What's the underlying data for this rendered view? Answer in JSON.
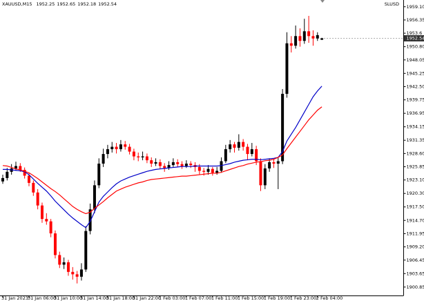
{
  "chart_data": {
    "type": "candlestick",
    "title": "XAUUSD,M15",
    "corner_label": "SLUSD",
    "categories": [
      "31 Jan 2023",
      null,
      null,
      null,
      null,
      null,
      "31 Jan 06:00",
      null,
      null,
      null,
      null,
      null,
      "31 Jan 10:00",
      null,
      null,
      null,
      null,
      null,
      "31 Jan 14:00",
      null,
      null,
      null,
      null,
      null,
      "31 Jan 18:00",
      null,
      null,
      null,
      null,
      null,
      "31 Jan 22:00",
      null,
      null,
      null,
      null,
      null,
      "1 Feb 03:00",
      null,
      null,
      null,
      null,
      null,
      "1 Feb 07:00",
      null,
      null,
      null,
      null,
      null,
      "1 Feb 11:00",
      null,
      null,
      null,
      null,
      null,
      "1 Feb 15:00",
      null,
      null,
      null,
      null,
      null,
      "1 Feb 19:00",
      null,
      null,
      null,
      null,
      null,
      "1 Feb 23:00",
      null,
      null,
      null,
      null,
      null,
      "2 Feb 04:00",
      null
    ],
    "candles": [
      [
        1922.8,
        1924.2,
        1922.3,
        1923.5
      ],
      [
        1923.5,
        1925.6,
        1923.0,
        1924.8
      ],
      [
        1924.8,
        1926.4,
        1924.2,
        1925.5
      ],
      [
        1925.5,
        1926.9,
        1925.0,
        1926.0
      ],
      [
        1926.0,
        1926.6,
        1924.8,
        1925.2
      ],
      [
        1925.2,
        1925.7,
        1923.4,
        1924.0
      ],
      [
        1924.0,
        1924.5,
        1921.8,
        1922.5
      ],
      [
        1922.5,
        1923.0,
        1919.8,
        1920.5
      ],
      [
        1920.5,
        1921.2,
        1917.0,
        1917.8
      ],
      [
        1917.8,
        1918.4,
        1914.2,
        1915.0
      ],
      [
        1915.0,
        1916.2,
        1913.8,
        1914.5
      ],
      [
        1914.5,
        1915.0,
        1911.2,
        1912.0
      ],
      [
        1912.0,
        1912.6,
        1906.8,
        1907.5
      ],
      [
        1907.5,
        1908.2,
        1904.8,
        1905.5
      ],
      [
        1905.5,
        1907.0,
        1904.6,
        1906.0
      ],
      [
        1906.0,
        1906.5,
        1903.2,
        1904.0
      ],
      [
        1904.0,
        1905.0,
        1902.4,
        1903.5
      ],
      [
        1903.5,
        1904.2,
        1901.6,
        1903.0
      ],
      [
        1903.0,
        1905.8,
        1902.2,
        1904.5
      ],
      [
        1904.5,
        1913.5,
        1904.0,
        1912.5
      ],
      [
        1912.5,
        1918.2,
        1911.8,
        1917.0
      ],
      [
        1917.0,
        1923.0,
        1916.2,
        1922.0
      ],
      [
        1922.0,
        1927.6,
        1921.4,
        1926.5
      ],
      [
        1926.5,
        1929.6,
        1925.8,
        1928.5
      ],
      [
        1928.5,
        1930.4,
        1927.6,
        1929.5
      ],
      [
        1929.5,
        1931.0,
        1928.8,
        1930.0
      ],
      [
        1930.0,
        1930.8,
        1928.6,
        1929.5
      ],
      [
        1929.5,
        1931.4,
        1929.0,
        1930.5
      ],
      [
        1930.5,
        1931.2,
        1929.4,
        1930.0
      ],
      [
        1930.0,
        1930.6,
        1928.4,
        1929.0
      ],
      [
        1929.0,
        1929.6,
        1927.2,
        1928.0
      ],
      [
        1928.0,
        1928.8,
        1927.0,
        1927.8
      ],
      [
        1927.8,
        1929.0,
        1927.2,
        1928.0
      ],
      [
        1928.0,
        1928.6,
        1926.6,
        1927.2
      ],
      [
        1927.2,
        1927.8,
        1925.8,
        1926.5
      ],
      [
        1926.5,
        1927.6,
        1926.0,
        1926.8
      ],
      [
        1926.8,
        1927.4,
        1925.4,
        1926.0
      ],
      [
        1926.0,
        1926.6,
        1924.8,
        1925.6
      ],
      [
        1925.6,
        1927.0,
        1925.2,
        1926.2
      ],
      [
        1926.2,
        1927.6,
        1925.8,
        1926.8
      ],
      [
        1926.8,
        1927.4,
        1925.8,
        1926.4
      ],
      [
        1926.4,
        1927.0,
        1925.4,
        1926.0
      ],
      [
        1926.0,
        1927.2,
        1925.6,
        1926.5
      ],
      [
        1926.5,
        1927.0,
        1925.6,
        1926.2
      ],
      [
        1926.2,
        1926.8,
        1924.8,
        1925.8
      ],
      [
        1925.8,
        1926.4,
        1924.2,
        1925.0
      ],
      [
        1925.0,
        1925.6,
        1924.0,
        1924.8
      ],
      [
        1924.8,
        1926.2,
        1924.2,
        1925.4
      ],
      [
        1925.4,
        1925.8,
        1924.0,
        1924.6
      ],
      [
        1924.6,
        1925.8,
        1924.2,
        1925.0
      ],
      [
        1925.0,
        1927.8,
        1924.6,
        1927.0
      ],
      [
        1927.0,
        1930.4,
        1926.6,
        1929.5
      ],
      [
        1929.5,
        1931.4,
        1928.8,
        1930.5
      ],
      [
        1930.5,
        1931.0,
        1928.8,
        1929.8
      ],
      [
        1929.8,
        1932.6,
        1929.2,
        1931.0
      ],
      [
        1931.0,
        1931.6,
        1929.2,
        1930.0
      ],
      [
        1930.0,
        1930.6,
        1927.2,
        1928.5
      ],
      [
        1928.5,
        1930.8,
        1928.0,
        1929.5
      ],
      [
        1929.5,
        1930.2,
        1926.2,
        1927.0
      ],
      [
        1927.0,
        1927.6,
        1920.8,
        1922.0
      ],
      [
        1922.0,
        1926.4,
        1921.2,
        1925.5
      ],
      [
        1925.5,
        1927.6,
        1924.8,
        1926.8
      ],
      [
        1926.8,
        1927.4,
        1925.6,
        1926.5
      ],
      [
        1926.5,
        1927.8,
        1921.2,
        1927.0
      ],
      [
        1927.0,
        1942.0,
        1926.4,
        1941.0
      ],
      [
        1941.0,
        1953.8,
        1940.2,
        1951.5
      ],
      [
        1951.5,
        1953.0,
        1949.6,
        1951.0
      ],
      [
        1951.0,
        1955.2,
        1950.4,
        1953.0
      ],
      [
        1953.0,
        1954.6,
        1950.8,
        1952.0
      ],
      [
        1952.0,
        1956.6,
        1951.4,
        1954.0
      ],
      [
        1954.0,
        1957.2,
        1951.6,
        1953.0
      ],
      [
        1953.0,
        1954.2,
        1951.0,
        1952.5
      ],
      [
        1952.5,
        1953.8,
        1952.0,
        1953.2
      ],
      [
        1952.25,
        1952.65,
        1952.18,
        1952.54
      ]
    ],
    "up_color": "#000000",
    "down_color": "#ff0000",
    "lines": [
      {
        "color": "#0000c8",
        "values": [
          1925.3,
          1925.3,
          1925.2,
          1925.1,
          1925.0,
          1924.8,
          1924.2,
          1923.3,
          1922.4,
          1921.6,
          1920.8,
          1919.8,
          1918.7,
          1917.8,
          1916.9,
          1916.0,
          1915.2,
          1914.5,
          1913.8,
          1913.2,
          1914.5,
          1916.5,
          1918.5,
          1919.7,
          1920.6,
          1921.5,
          1922.3,
          1922.9,
          1923.3,
          1923.7,
          1924.0,
          1924.3,
          1924.6,
          1924.9,
          1925.1,
          1925.3,
          1925.4,
          1925.5,
          1925.6,
          1925.7,
          1925.8,
          1925.9,
          1925.9,
          1925.9,
          1926.0,
          1926.0,
          1926.0,
          1926.0,
          1926.0,
          1926.0,
          1926.1,
          1926.3,
          1926.5,
          1926.8,
          1927.0,
          1927.2,
          1927.3,
          1927.4,
          1927.4,
          1927.3,
          1927.4,
          1927.5,
          1927.6,
          1927.8,
          1929.0,
          1931.2,
          1932.6,
          1934.0,
          1935.6,
          1937.2,
          1938.8,
          1940.4,
          1941.6,
          1942.6
        ]
      },
      {
        "color": "#ff0000",
        "values": [
          1926.1,
          1926.0,
          1925.7,
          1925.4,
          1925.2,
          1924.9,
          1924.6,
          1924.0,
          1923.4,
          1922.7,
          1922.0,
          1921.3,
          1920.7,
          1920.0,
          1919.2,
          1918.4,
          1917.6,
          1917.0,
          1916.5,
          1916.1,
          1916.4,
          1917.2,
          1917.9,
          1918.6,
          1919.4,
          1920.1,
          1920.8,
          1921.2,
          1921.6,
          1921.9,
          1922.2,
          1922.5,
          1922.7,
          1923.0,
          1923.2,
          1923.3,
          1923.4,
          1923.5,
          1923.6,
          1923.7,
          1923.8,
          1923.9,
          1923.9,
          1924.0,
          1924.1,
          1924.2,
          1924.3,
          1924.4,
          1924.5,
          1924.5,
          1924.7,
          1925.0,
          1925.3,
          1925.6,
          1925.9,
          1926.1,
          1926.4,
          1926.6,
          1926.8,
          1926.9,
          1927.1,
          1927.2,
          1927.4,
          1927.8,
          1928.3,
          1929.6,
          1930.8,
          1932.0,
          1933.2,
          1934.4,
          1935.6,
          1936.6,
          1937.6,
          1938.3
        ]
      }
    ],
    "ylim": [
      1899.1,
      1960.5
    ],
    "yticks": [
      {
        "value": 1959.1,
        "label": "1959.10"
      },
      1956.35,
      1953.6,
      {
        "value": 1950.8,
        "label": "1950.80"
      },
      1948.05,
      1945.25,
      {
        "value": 1942.5,
        "label": "1942.50"
      },
      1939.75,
      1936.95,
      1934.15,
      1931.35,
      {
        "value": 1928.6,
        "label": "1928.60"
      },
      1925.85,
      {
        "value": 1923.1,
        "label": "1923.10"
      },
      {
        "value": 1920.3,
        "label": "1920.30"
      },
      {
        "value": 1917.5,
        "label": "1917.50"
      },
      {
        "value": 1914.7,
        "label": "1914.70"
      },
      1911.95,
      {
        "value": 1909.2,
        "label": "1909.20"
      },
      1906.45,
      1903.65,
      1900.85
    ],
    "grid": false
  }
}
